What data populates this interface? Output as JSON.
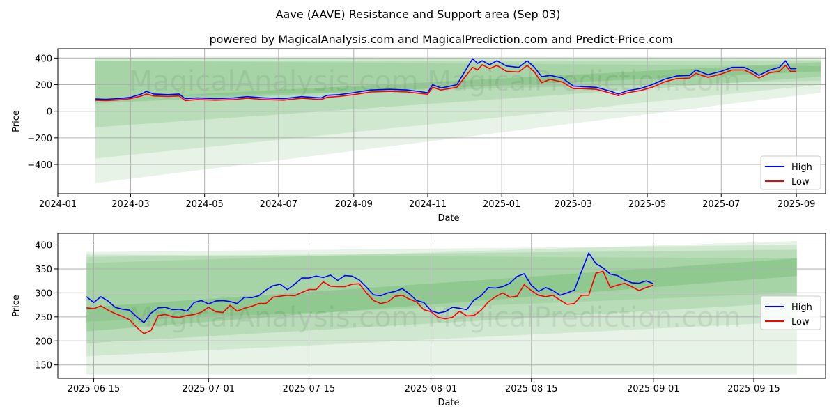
{
  "title": "Aave (AAVE) Resistance and Support area (Sep 03)",
  "subtitle": "powered by MagicalAnalysis.com and MagicalPrediction.com and Predict-Price.com",
  "watermark": "MagicalAnalysis.com   MagicalPrediction.com",
  "colors": {
    "high": "#0000ff",
    "low": "#ff0000",
    "band": "#2e9b2e",
    "grid": "#b0b0b0"
  },
  "chart_data": [
    {
      "type": "line",
      "xlabel": "Date",
      "ylabel": "Price",
      "xlim": [
        "2024-01-01",
        "2025-09-25"
      ],
      "ylim": [
        -620,
        470
      ],
      "xticks": [
        "2024-01",
        "2024-03",
        "2024-05",
        "2024-07",
        "2024-09",
        "2024-11",
        "2025-01",
        "2025-03",
        "2025-05",
        "2025-07",
        "2025-09"
      ],
      "yticks": [
        -400,
        -200,
        0,
        200,
        400
      ],
      "legend": {
        "position": "lower-right",
        "entries": [
          "High",
          "Low"
        ]
      },
      "bands": [
        {
          "x": [
            "2024-02-01",
            "2025-09-21"
          ],
          "upper": [
            410,
            410
          ],
          "lower": [
            -540,
            140
          ],
          "opacity": 0.12
        },
        {
          "x": [
            "2024-02-01",
            "2025-09-21"
          ],
          "upper": [
            400,
            390
          ],
          "lower": [
            -355,
            200
          ],
          "opacity": 0.12
        },
        {
          "x": [
            "2024-02-01",
            "2025-09-21"
          ],
          "upper": [
            380,
            380
          ],
          "lower": [
            -120,
            260
          ],
          "opacity": 0.15
        },
        {
          "x": [
            "2024-02-01",
            "2025-09-21"
          ],
          "upper": [
            90,
            370
          ],
          "lower": [
            60,
            300
          ],
          "opacity": 0.18
        },
        {
          "x": [
            "2024-02-01",
            "2025-09-21"
          ],
          "upper": [
            380,
            340
          ],
          "lower": [
            100,
            230
          ],
          "opacity": 0.12
        }
      ],
      "series": [
        {
          "name": "High",
          "x": [
            "2024-02-01",
            "2024-02-10",
            "2024-02-20",
            "2024-03-01",
            "2024-03-10",
            "2024-03-14",
            "2024-03-20",
            "2024-04-01",
            "2024-04-10",
            "2024-04-15",
            "2024-04-25",
            "2024-05-10",
            "2024-05-25",
            "2024-06-05",
            "2024-06-20",
            "2024-07-05",
            "2024-07-20",
            "2024-08-05",
            "2024-08-10",
            "2024-08-20",
            "2024-09-01",
            "2024-09-15",
            "2024-10-01",
            "2024-10-15",
            "2024-11-01",
            "2024-11-05",
            "2024-11-12",
            "2024-11-25",
            "2024-12-01",
            "2024-12-08",
            "2024-12-12",
            "2024-12-16",
            "2024-12-22",
            "2024-12-28",
            "2025-01-05",
            "2025-01-15",
            "2025-01-22",
            "2025-01-28",
            "2025-02-03",
            "2025-02-10",
            "2025-02-20",
            "2025-03-01",
            "2025-03-10",
            "2025-03-20",
            "2025-04-01",
            "2025-04-07",
            "2025-04-15",
            "2025-04-25",
            "2025-05-05",
            "2025-05-15",
            "2025-05-25",
            "2025-06-05",
            "2025-06-10",
            "2025-06-20",
            "2025-07-01",
            "2025-07-10",
            "2025-07-20",
            "2025-07-27",
            "2025-08-01",
            "2025-08-10",
            "2025-08-18",
            "2025-08-23",
            "2025-08-27",
            "2025-09-01"
          ],
          "values": [
            92,
            90,
            95,
            105,
            130,
            150,
            130,
            125,
            130,
            95,
            100,
            95,
            100,
            110,
            100,
            95,
            110,
            100,
            120,
            125,
            140,
            160,
            165,
            160,
            140,
            200,
            175,
            200,
            290,
            395,
            360,
            380,
            350,
            380,
            340,
            330,
            380,
            330,
            260,
            270,
            250,
            190,
            185,
            180,
            150,
            130,
            155,
            170,
            200,
            240,
            265,
            270,
            310,
            275,
            300,
            330,
            330,
            300,
            270,
            310,
            330,
            380,
            320,
            320
          ]
        },
        {
          "name": "Low",
          "x": [
            "2024-02-01",
            "2024-02-10",
            "2024-02-20",
            "2024-03-01",
            "2024-03-10",
            "2024-03-14",
            "2024-03-20",
            "2024-04-01",
            "2024-04-10",
            "2024-04-15",
            "2024-04-25",
            "2024-05-10",
            "2024-05-25",
            "2024-06-05",
            "2024-06-20",
            "2024-07-05",
            "2024-07-20",
            "2024-08-05",
            "2024-08-10",
            "2024-08-20",
            "2024-09-01",
            "2024-09-15",
            "2024-10-01",
            "2024-10-15",
            "2024-11-01",
            "2024-11-05",
            "2024-11-12",
            "2024-11-25",
            "2024-12-01",
            "2024-12-08",
            "2024-12-12",
            "2024-12-16",
            "2024-12-22",
            "2024-12-28",
            "2025-01-05",
            "2025-01-15",
            "2025-01-22",
            "2025-01-28",
            "2025-02-03",
            "2025-02-10",
            "2025-02-20",
            "2025-03-01",
            "2025-03-10",
            "2025-03-20",
            "2025-04-01",
            "2025-04-07",
            "2025-04-15",
            "2025-04-25",
            "2025-05-05",
            "2025-05-15",
            "2025-05-25",
            "2025-06-05",
            "2025-06-10",
            "2025-06-20",
            "2025-07-01",
            "2025-07-10",
            "2025-07-20",
            "2025-07-27",
            "2025-08-01",
            "2025-08-10",
            "2025-08-18",
            "2025-08-23",
            "2025-08-27",
            "2025-09-01"
          ],
          "values": [
            82,
            80,
            85,
            95,
            115,
            130,
            115,
            112,
            115,
            80,
            88,
            83,
            88,
            98,
            88,
            83,
            98,
            88,
            105,
            112,
            125,
            145,
            150,
            145,
            128,
            180,
            160,
            180,
            250,
            330,
            310,
            350,
            320,
            345,
            300,
            295,
            345,
            295,
            215,
            240,
            220,
            170,
            170,
            165,
            135,
            118,
            140,
            155,
            180,
            220,
            245,
            250,
            285,
            255,
            280,
            310,
            310,
            280,
            250,
            290,
            300,
            345,
            300,
            300
          ]
        }
      ]
    },
    {
      "type": "line",
      "xlabel": "Date",
      "ylabel": "Price",
      "xlim": [
        "2025-06-10",
        "2025-09-25"
      ],
      "ylim": [
        122,
        424
      ],
      "xticks": [
        "2025-06-15",
        "2025-07-01",
        "2025-07-15",
        "2025-08-01",
        "2025-08-15",
        "2025-09-01",
        "2025-09-15"
      ],
      "yticks": [
        150,
        200,
        250,
        300,
        350,
        400
      ],
      "legend": {
        "position": "center-right",
        "entries": [
          "High",
          "Low"
        ]
      },
      "bands": [
        {
          "x": [
            "2025-06-14",
            "2025-09-21"
          ],
          "upper": [
            362,
            408
          ],
          "lower": [
            130,
            130
          ],
          "opacity": 0.12
        },
        {
          "x": [
            "2025-06-14",
            "2025-09-21"
          ],
          "upper": [
            385,
            400
          ],
          "lower": [
            168,
            240
          ],
          "opacity": 0.12
        },
        {
          "x": [
            "2025-06-14",
            "2025-09-21"
          ],
          "upper": [
            375,
            390
          ],
          "lower": [
            195,
            280
          ],
          "opacity": 0.15
        },
        {
          "x": [
            "2025-06-14",
            "2025-09-21"
          ],
          "upper": [
            270,
            372
          ],
          "lower": [
            220,
            335
          ],
          "opacity": 0.18
        },
        {
          "x": [
            "2025-06-14",
            "2025-09-21"
          ],
          "upper": [
            380,
            372
          ],
          "lower": [
            240,
            300
          ],
          "opacity": 0.12
        }
      ],
      "series": [
        {
          "name": "High",
          "x": [
            "2025-06-14",
            "2025-06-15",
            "2025-06-16",
            "2025-06-17",
            "2025-06-18",
            "2025-06-19",
            "2025-06-20",
            "2025-06-21",
            "2025-06-22",
            "2025-06-23",
            "2025-06-24",
            "2025-06-25",
            "2025-06-26",
            "2025-06-27",
            "2025-06-28",
            "2025-06-29",
            "2025-06-30",
            "2025-07-01",
            "2025-07-02",
            "2025-07-03",
            "2025-07-04",
            "2025-07-05",
            "2025-07-06",
            "2025-07-07",
            "2025-07-08",
            "2025-07-09",
            "2025-07-10",
            "2025-07-11",
            "2025-07-12",
            "2025-07-13",
            "2025-07-14",
            "2025-07-15",
            "2025-07-16",
            "2025-07-17",
            "2025-07-18",
            "2025-07-19",
            "2025-07-20",
            "2025-07-21",
            "2025-07-22",
            "2025-07-23",
            "2025-07-24",
            "2025-07-25",
            "2025-07-26",
            "2025-07-27",
            "2025-07-28",
            "2025-07-29",
            "2025-07-30",
            "2025-07-31",
            "2025-08-01",
            "2025-08-02",
            "2025-08-03",
            "2025-08-04",
            "2025-08-05",
            "2025-08-06",
            "2025-08-07",
            "2025-08-08",
            "2025-08-09",
            "2025-08-10",
            "2025-08-11",
            "2025-08-12",
            "2025-08-13",
            "2025-08-14",
            "2025-08-15",
            "2025-08-16",
            "2025-08-17",
            "2025-08-18",
            "2025-08-19",
            "2025-08-20",
            "2025-08-21",
            "2025-08-22",
            "2025-08-23",
            "2025-08-24",
            "2025-08-25",
            "2025-08-26",
            "2025-08-27",
            "2025-08-28",
            "2025-08-29",
            "2025-08-30",
            "2025-08-31",
            "2025-09-01"
          ],
          "values": [
            292,
            280,
            292,
            283,
            270,
            266,
            264,
            250,
            238,
            258,
            269,
            270,
            265,
            266,
            262,
            280,
            284,
            277,
            283,
            284,
            282,
            278,
            291,
            290,
            294,
            306,
            315,
            318,
            307,
            318,
            331,
            331,
            335,
            332,
            337,
            326,
            336,
            335,
            327,
            312,
            296,
            294,
            300,
            303,
            309,
            298,
            284,
            280,
            263,
            258,
            261,
            270,
            268,
            265,
            285,
            294,
            311,
            310,
            313,
            320,
            334,
            340,
            316,
            303,
            311,
            305,
            295,
            300,
            306,
            345,
            383,
            361,
            352,
            339,
            336,
            327,
            321,
            320,
            325,
            319
          ]
        },
        {
          "name": "Low",
          "x": [
            "2025-06-14",
            "2025-06-15",
            "2025-06-16",
            "2025-06-17",
            "2025-06-18",
            "2025-06-19",
            "2025-06-20",
            "2025-06-21",
            "2025-06-22",
            "2025-06-23",
            "2025-06-24",
            "2025-06-25",
            "2025-06-26",
            "2025-06-27",
            "2025-06-28",
            "2025-06-29",
            "2025-06-30",
            "2025-07-01",
            "2025-07-02",
            "2025-07-03",
            "2025-07-04",
            "2025-07-05",
            "2025-07-06",
            "2025-07-07",
            "2025-07-08",
            "2025-07-09",
            "2025-07-10",
            "2025-07-11",
            "2025-07-12",
            "2025-07-13",
            "2025-07-14",
            "2025-07-15",
            "2025-07-16",
            "2025-07-17",
            "2025-07-18",
            "2025-07-19",
            "2025-07-20",
            "2025-07-21",
            "2025-07-22",
            "2025-07-23",
            "2025-07-24",
            "2025-07-25",
            "2025-07-26",
            "2025-07-27",
            "2025-07-28",
            "2025-07-29",
            "2025-07-30",
            "2025-07-31",
            "2025-08-01",
            "2025-08-02",
            "2025-08-03",
            "2025-08-04",
            "2025-08-05",
            "2025-08-06",
            "2025-08-07",
            "2025-08-08",
            "2025-08-09",
            "2025-08-10",
            "2025-08-11",
            "2025-08-12",
            "2025-08-13",
            "2025-08-14",
            "2025-08-15",
            "2025-08-16",
            "2025-08-17",
            "2025-08-18",
            "2025-08-19",
            "2025-08-20",
            "2025-08-21",
            "2025-08-22",
            "2025-08-23",
            "2025-08-24",
            "2025-08-25",
            "2025-08-26",
            "2025-08-27",
            "2025-08-28",
            "2025-08-29",
            "2025-08-30",
            "2025-08-31",
            "2025-09-01"
          ],
          "values": [
            269,
            267,
            273,
            264,
            257,
            251,
            244,
            228,
            215,
            222,
            253,
            255,
            250,
            249,
            253,
            255,
            260,
            270,
            261,
            259,
            274,
            262,
            268,
            272,
            278,
            278,
            291,
            293,
            295,
            294,
            301,
            307,
            307,
            323,
            314,
            313,
            313,
            318,
            319,
            300,
            284,
            278,
            281,
            293,
            295,
            287,
            281,
            265,
            261,
            249,
            246,
            249,
            262,
            252,
            253,
            264,
            281,
            292,
            300,
            291,
            293,
            317,
            305,
            295,
            292,
            295,
            285,
            276,
            278,
            295,
            295,
            341,
            345,
            311,
            316,
            320,
            313,
            305,
            311,
            316
          ]
        }
      ]
    }
  ]
}
